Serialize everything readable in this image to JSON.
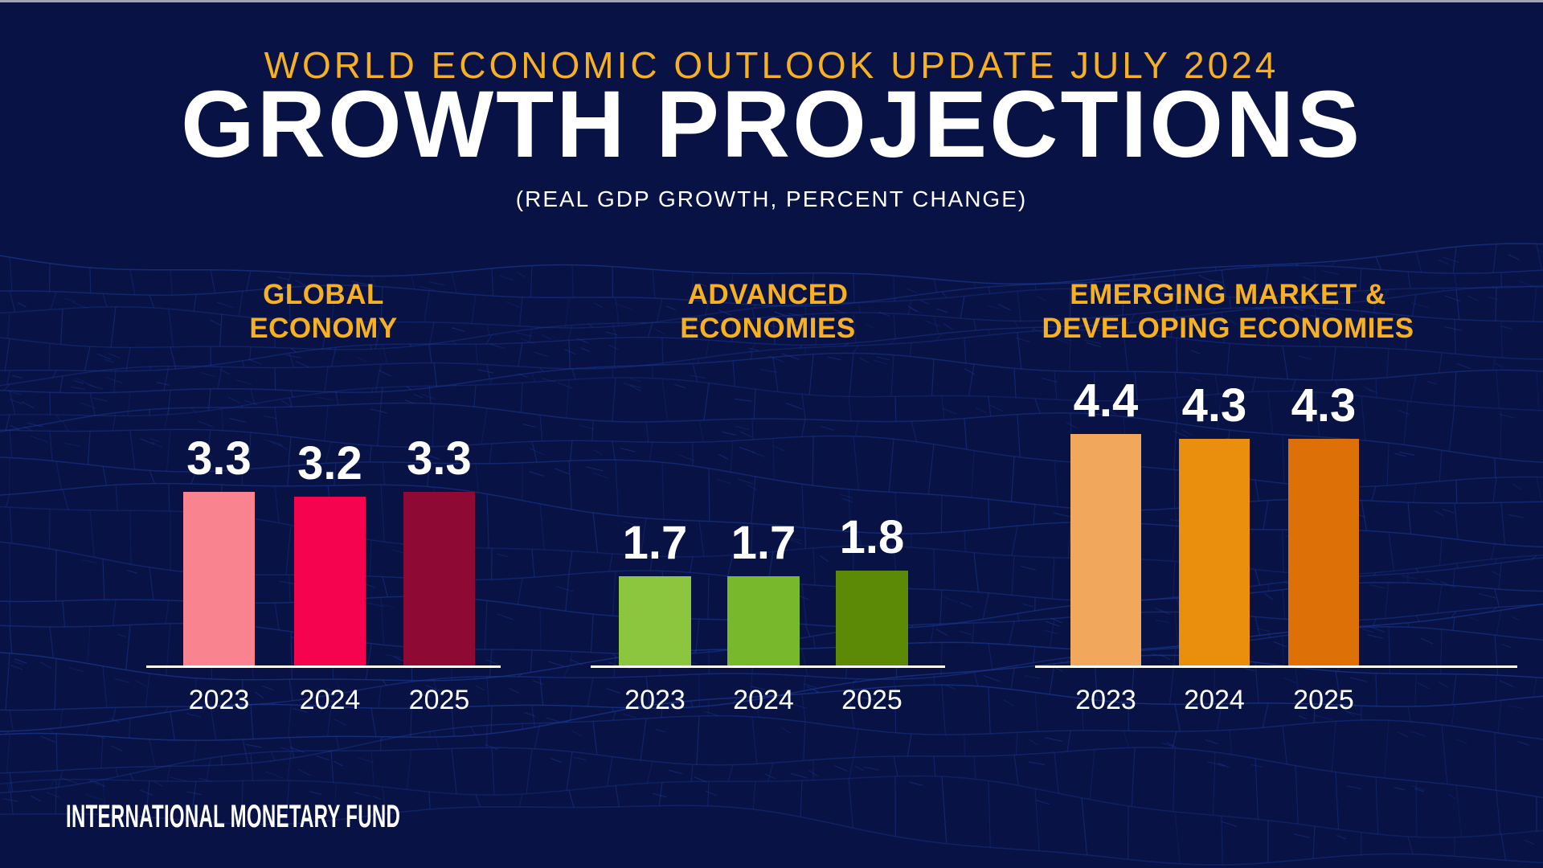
{
  "page": {
    "kicker": "WORLD ECONOMIC OUTLOOK UPDATE JULY 2024",
    "title": "GROWTH PROJECTIONS",
    "subtitle": "(REAL GDP GROWTH, PERCENT CHANGE)",
    "footer": "INTERNATIONAL MONETARY FUND"
  },
  "colors": {
    "background": "#081245",
    "wireframe_line": "#1C3A94",
    "accent_gold": "#F6B021",
    "text_white": "#FFFFFF",
    "axis_line": "#FFFFFF",
    "top_border": "#9EA3B7"
  },
  "chart_data": {
    "type": "bar",
    "title": "Growth Projections — World Economic Outlook Update July 2024",
    "subtitle": "Real GDP growth, percent change",
    "categories": [
      "2023",
      "2024",
      "2025"
    ],
    "ylim": [
      0,
      5
    ],
    "grid": false,
    "legend": false,
    "value_labels_position": "above bars",
    "groups": [
      {
        "name": "GLOBAL ECONOMY",
        "title_lines": [
          "GLOBAL",
          "ECONOMY"
        ],
        "values": [
          3.3,
          3.2,
          3.3
        ],
        "bar_colors": [
          "#F9838E",
          "#F5034F",
          "#8E0A35"
        ]
      },
      {
        "name": "ADVANCED ECONOMIES",
        "title_lines": [
          "ADVANCED",
          "ECONOMIES"
        ],
        "values": [
          1.7,
          1.7,
          1.8
        ],
        "bar_colors": [
          "#8CC63F",
          "#77B82C",
          "#5C8A06"
        ]
      },
      {
        "name": "EMERGING MARKET & DEVELOPING ECONOMIES",
        "title_lines": [
          "EMERGING MARKET &",
          "DEVELOPING ECONOMIES"
        ],
        "values": [
          4.4,
          4.3,
          4.3
        ],
        "bar_colors": [
          "#F1A85D",
          "#E98E0D",
          "#DD7006"
        ]
      }
    ]
  }
}
